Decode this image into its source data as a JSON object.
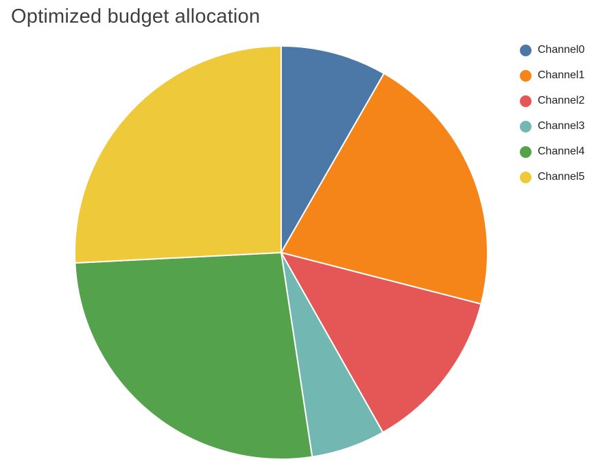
{
  "chart_data": {
    "type": "pie",
    "title": "Optimized budget allocation",
    "categories": [
      "Channel0",
      "Channel1",
      "Channel2",
      "Channel3",
      "Channel4",
      "Channel5"
    ],
    "values": [
      8.3,
      20.7,
      12.8,
      5.8,
      26.6,
      25.8
    ],
    "unit": "percent_of_total",
    "colors": [
      "#4c78a8",
      "#f58518",
      "#e45756",
      "#72b7b2",
      "#54a24b",
      "#eeca3b"
    ],
    "legend_position": "right",
    "start_angle_deg": 0,
    "direction": "clockwise",
    "slice_gap_color": "#ffffff"
  }
}
